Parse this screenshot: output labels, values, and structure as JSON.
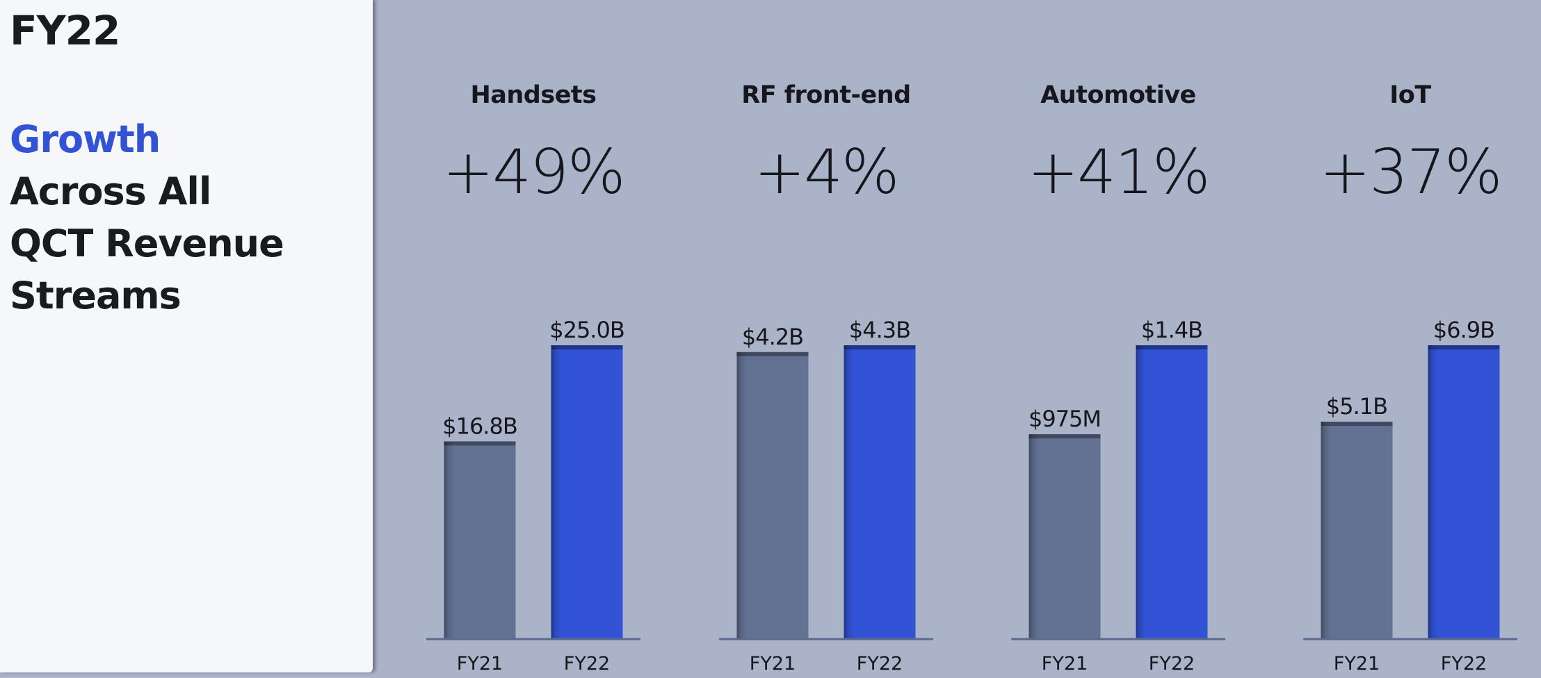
{
  "panel": {
    "fy_label": "FY22",
    "headline_accent": "Growth",
    "headline_lines": [
      "Across All",
      "QCT Revenue",
      "Streams"
    ]
  },
  "colors": {
    "fy21_bar": "#637193",
    "fy22_bar": "#3253d6",
    "accent_text": "#3353d6",
    "background": "#aab3c8",
    "panel_background": "#f6f7f9"
  },
  "chart_data": {
    "type": "bar",
    "categories": [
      "FY21",
      "FY22"
    ],
    "groups": [
      {
        "title": "Handsets",
        "growth": "+49%",
        "values": [
          16.8,
          25.0
        ],
        "unit": "B",
        "labels": [
          "$16.8B",
          "$25.0B"
        ]
      },
      {
        "title": "RF front-end",
        "growth": "+4%",
        "values": [
          4.2,
          4.3
        ],
        "unit": "B",
        "labels": [
          "$4.2B",
          "$4.3B"
        ]
      },
      {
        "title": "Automotive",
        "growth": "+41%",
        "values": [
          975,
          1400
        ],
        "unit": "M",
        "labels": [
          "$975M",
          "$1.4B"
        ]
      },
      {
        "title": "IoT",
        "growth": "+37%",
        "values": [
          5.1,
          6.9
        ],
        "unit": "B",
        "labels": [
          "$5.1B",
          "$6.9B"
        ]
      }
    ]
  }
}
